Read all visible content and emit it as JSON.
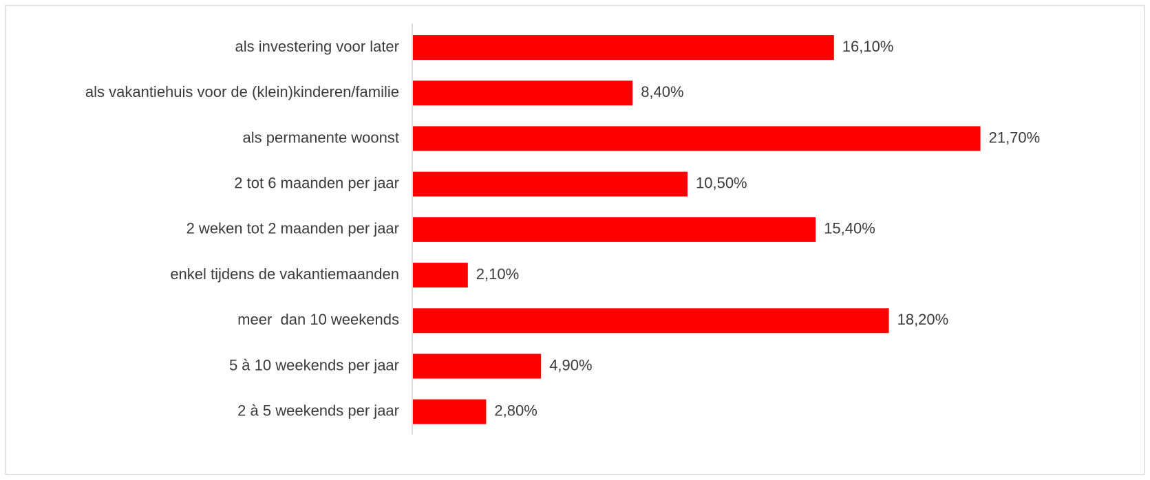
{
  "chart_data": {
    "type": "barh",
    "categories": [
      "als investering voor later",
      "als vakantiehuis voor de (klein)kinderen/familie",
      "als permanente woonst",
      "2 tot 6 maanden per jaar",
      "2 weken tot 2 maanden per jaar",
      "enkel tijdens de vakantiemaanden",
      "meer  dan 10 weekends",
      "5 à 10 weekends per jaar",
      "2 à 5 weekends per jaar"
    ],
    "values": [
      16.1,
      8.4,
      21.7,
      10.5,
      15.4,
      2.1,
      18.2,
      4.9,
      2.8
    ],
    "value_labels": [
      "16,10%",
      "8,40%",
      "21,70%",
      "10,50%",
      "15,40%",
      "2,10%",
      "18,20%",
      "4,90%",
      "2,80%"
    ],
    "color": "#ff0000"
  }
}
